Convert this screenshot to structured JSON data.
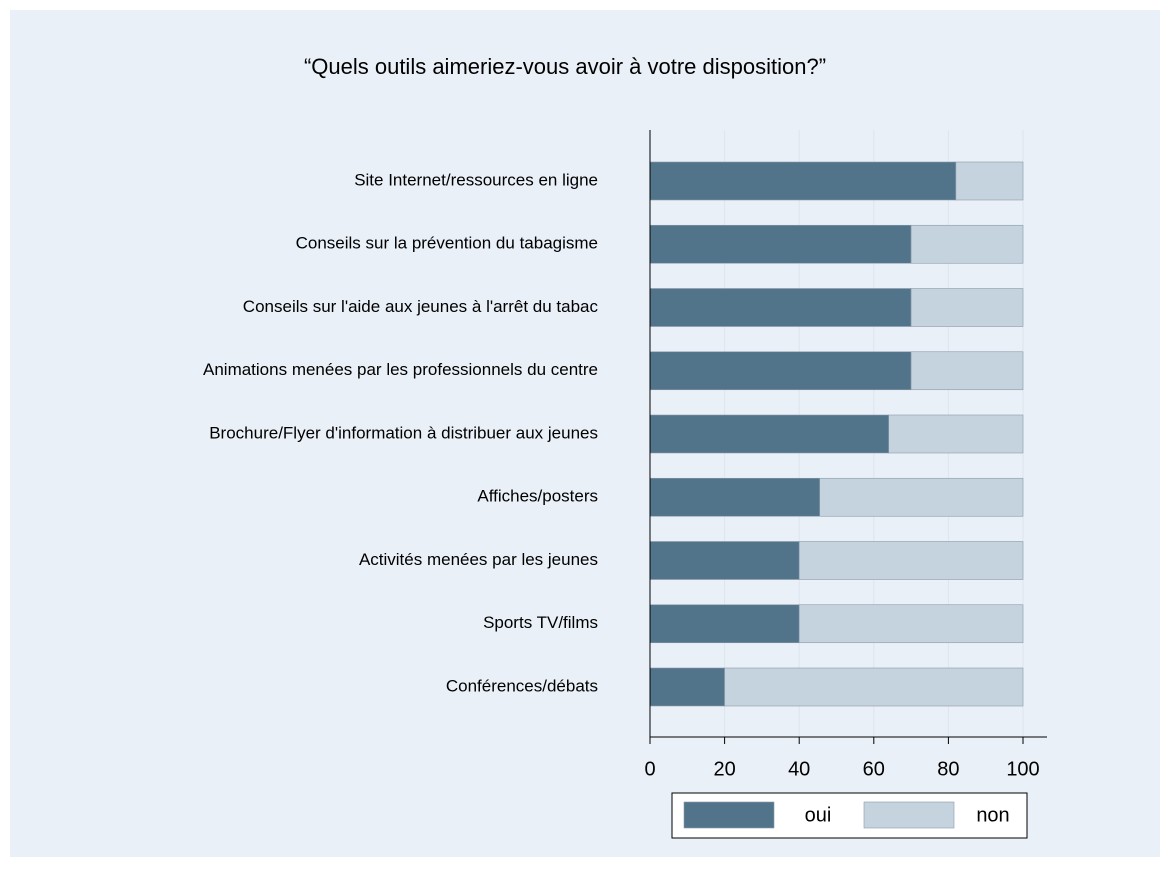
{
  "chart_data": {
    "type": "stacked_barh",
    "title": "“Quels outils aimeriez-vous avoir à votre disposition?”",
    "categories": [
      "Site Internet/ressources en ligne",
      "Conseils sur la prévention du tabagisme",
      "Conseils sur l'aide aux jeunes à l'arrêt du tabac",
      "Animations menées par les professionnels du centre",
      "Brochure/Flyer d'information à distribuer aux jeunes",
      "Affiches/posters",
      "Activités menées par les jeunes",
      "Sports TV/films",
      "Conférences/débats"
    ],
    "series": [
      {
        "name": "oui",
        "color": "#52748b",
        "values": [
          82,
          70,
          70,
          70,
          64,
          45.5,
          40,
          40,
          20
        ]
      },
      {
        "name": "non",
        "color": "#c5d3df",
        "values": [
          18,
          30,
          30,
          30,
          36,
          54.5,
          60,
          60,
          80
        ]
      }
    ],
    "xlim": [
      0,
      100
    ],
    "xticks": [
      0,
      20,
      40,
      60,
      80,
      100
    ],
    "grid": true,
    "legend": "bottom"
  }
}
